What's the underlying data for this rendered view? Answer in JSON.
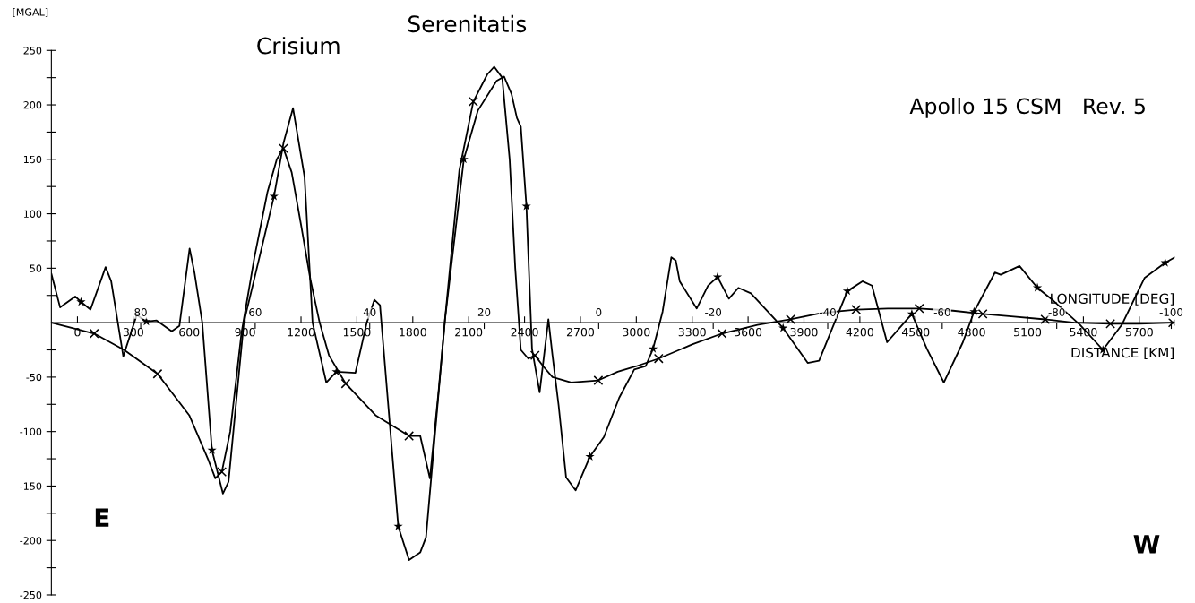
{
  "chart_data": {
    "type": "line",
    "title": "Apollo 15 CSM   Rev. 5",
    "xlabel": "DISTANCE [KM]",
    "x2label": "LONGITUDE [DEG]",
    "ylabel": "[MGAL]",
    "annotations": [
      "Crisium",
      "Serenitatis",
      "E",
      "W"
    ],
    "xlim": [
      -140,
      5890
    ],
    "xticks": [
      0,
      300,
      600,
      900,
      1200,
      1500,
      1800,
      2100,
      2400,
      2700,
      3000,
      3300,
      3600,
      3900,
      4200,
      4500,
      4800,
      5100,
      5400,
      5700
    ],
    "x2lim": [
      95.6,
      -100.6
    ],
    "x2ticks": [
      80,
      60,
      40,
      20,
      0,
      -20,
      -40,
      -60,
      -80,
      -100
    ],
    "ylim": [
      -250,
      250
    ],
    "yticks": [
      -250,
      {
        "value": -225,
        "label": null
      },
      -200,
      {
        "value": -175,
        "label": null
      },
      -150,
      {
        "value": -125,
        "label": null
      },
      -100,
      {
        "value": -75,
        "label": null
      },
      -50,
      {
        "value": -25,
        "label": null
      },
      {
        "value": 25,
        "label": null
      },
      50,
      {
        "value": 75,
        "label": null
      },
      100,
      {
        "value": 125,
        "label": null
      },
      150,
      {
        "value": 175,
        "label": null
      },
      200,
      {
        "value": 225,
        "label": null
      },
      250
    ],
    "grid": false,
    "legend": false,
    "series": [
      {
        "color": "#000000",
        "marker": "none",
        "x": [
          -140,
          -93,
          -12,
          19,
          70,
          151,
          181,
          246,
          318,
          370,
          425,
          506,
          547,
          602,
          628,
          670,
          722,
          781,
          811,
          893,
          1055,
          1106,
          1157,
          1219,
          1262,
          1336,
          1390,
          1492,
          1553,
          1594,
          1624,
          1722,
          1780,
          1840,
          1871,
          1973,
          2074,
          2150,
          2250,
          2290,
          2330,
          2359,
          2380,
          2410,
          2440,
          2481,
          2528,
          2550,
          2583,
          2623,
          2674,
          2751,
          2826,
          2908,
          2989,
          3050,
          3090,
          3141,
          3188,
          3212,
          3233,
          3324,
          3385,
          3436,
          3497,
          3548,
          3615,
          3788,
          3920,
          3981,
          4133,
          4214,
          4265,
          4346,
          4479,
          4560,
          4651,
          4753,
          4813,
          4925,
          4956,
          5057,
          5153,
          5240,
          5382,
          5505,
          5606,
          5728,
          5839,
          5890
        ],
        "values": [
          45,
          14,
          24,
          19,
          12,
          51,
          38,
          -31,
          7,
          1,
          2,
          -8,
          -3,
          68,
          46,
          0,
          -117,
          -157,
          -146,
          0,
          116,
          165,
          197,
          134,
          0,
          -55,
          -45,
          -46,
          0,
          21,
          16,
          -187,
          -218,
          -211,
          -197,
          3,
          150,
          195,
          222,
          226,
          210,
          188,
          180,
          107,
          -24,
          -64,
          3,
          -30,
          -76,
          -142,
          -154,
          -123,
          -105,
          -69,
          -43,
          -40,
          -24,
          10,
          60,
          57,
          38,
          13,
          34,
          42,
          22,
          32,
          27,
          -5,
          -37,
          -35,
          29,
          38,
          34,
          -18,
          8,
          -24,
          -55,
          -18,
          10,
          46,
          44,
          52,
          32,
          20,
          -2,
          -25,
          -2,
          41,
          55,
          60
        ]
      },
      {
        "type": "scatter",
        "color": "#000000",
        "marker": "star",
        "x": [
          19,
          370,
          722,
          1055,
          1390,
          1722,
          2074,
          2410,
          2751,
          3090,
          3436,
          3788,
          4133,
          4479,
          4813,
          5153,
          5505,
          5839
        ],
        "values": [
          19,
          1,
          -117,
          116,
          -45,
          -187,
          150,
          107,
          -123,
          -24,
          42,
          -5,
          29,
          8,
          10,
          32,
          -25,
          55
        ]
      },
      {
        "color": "#000000",
        "marker": "none",
        "x": [
          -140,
          90,
          250,
          430,
          600,
          700,
          740,
          775,
          820,
          880,
          950,
          1020,
          1070,
          1106,
          1150,
          1200,
          1250,
          1300,
          1350,
          1440,
          1600,
          1780,
          1840,
          1892,
          1940,
          1973,
          2050,
          2125,
          2200,
          2237,
          2280,
          2320,
          2350,
          2380,
          2420,
          2456,
          2500,
          2550,
          2650,
          2796,
          2900,
          3000,
          3120,
          3300,
          3460,
          3650,
          3828,
          4000,
          4180,
          4350,
          4519,
          4700,
          4860,
          5000,
          5195,
          5350,
          5545,
          5700,
          5880
        ],
        "values": [
          0,
          -10,
          -25,
          -47,
          -85,
          -125,
          -143,
          -137,
          -100,
          -10,
          60,
          120,
          150,
          160,
          138,
          90,
          40,
          0,
          -30,
          -56,
          -85,
          -104,
          -104,
          -143,
          -60,
          3,
          140,
          203,
          228,
          235,
          225,
          150,
          50,
          -25,
          -33,
          -30,
          -40,
          -50,
          -55,
          -53,
          -45,
          -40,
          -33,
          -20,
          -10,
          -2,
          3,
          9,
          12,
          13,
          13,
          11,
          8,
          6,
          3,
          0,
          -1,
          -1,
          0
        ]
      },
      {
        "type": "scatter",
        "color": "#000000",
        "marker": "cross",
        "x": [
          90,
          430,
          775,
          1106,
          1440,
          1780,
          2125,
          2456,
          2796,
          3120,
          3460,
          3828,
          4180,
          4519,
          4860,
          5195,
          5545,
          5880
        ],
        "values": [
          -10,
          -47,
          -137,
          160,
          -56,
          -104,
          203,
          -30,
          -53,
          -33,
          -10,
          3,
          12,
          13,
          8,
          3,
          -1,
          0
        ]
      }
    ]
  }
}
